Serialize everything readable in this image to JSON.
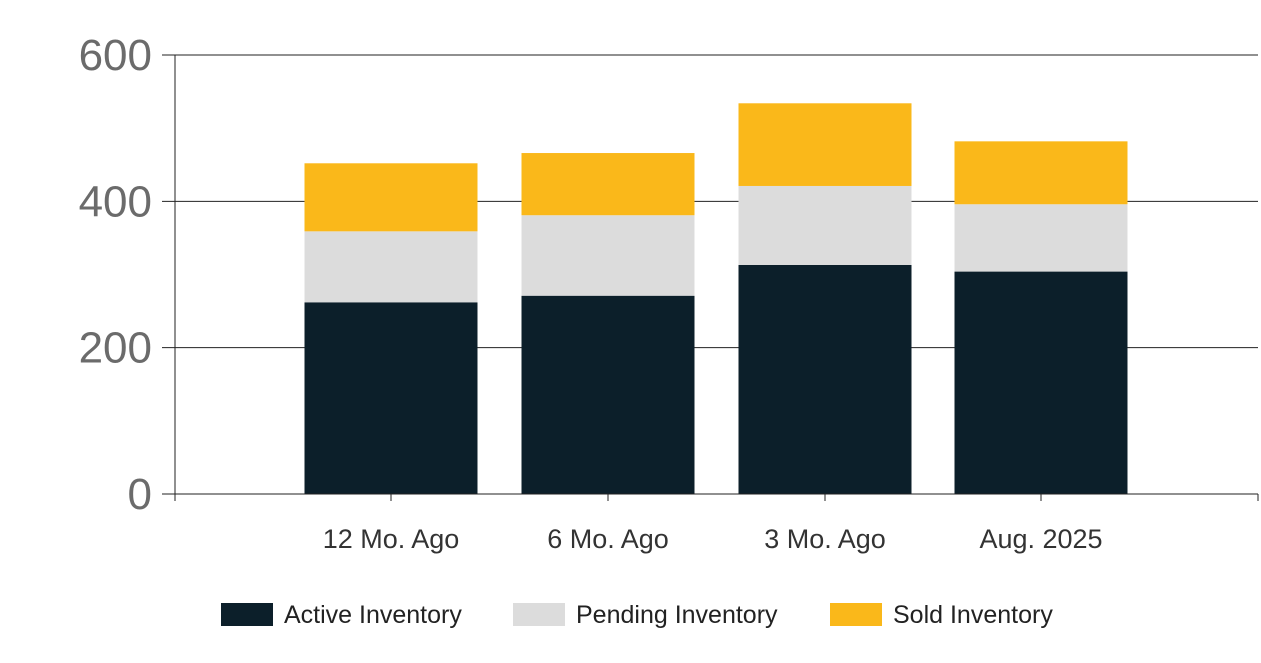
{
  "chart_data": {
    "type": "bar",
    "stacked": true,
    "categories": [
      "12 Mo. Ago",
      "6 Mo. Ago",
      "3 Mo. Ago",
      "Aug. 2025"
    ],
    "series": [
      {
        "name": "Active Inventory",
        "values": [
          262,
          271,
          313,
          304
        ],
        "color": "#0c1f2a"
      },
      {
        "name": "Pending Inventory",
        "values": [
          97,
          110,
          108,
          92
        ],
        "color": "#dcdcdc"
      },
      {
        "name": "Sold Inventory",
        "values": [
          93,
          85,
          113,
          86
        ],
        "color": "#fab81a"
      }
    ],
    "ylim": [
      0,
      600
    ],
    "yticks": [
      "0",
      "200",
      "400",
      "600"
    ],
    "grid": true,
    "legend_position": "bottom",
    "title": "",
    "xlabel": "",
    "ylabel": ""
  }
}
